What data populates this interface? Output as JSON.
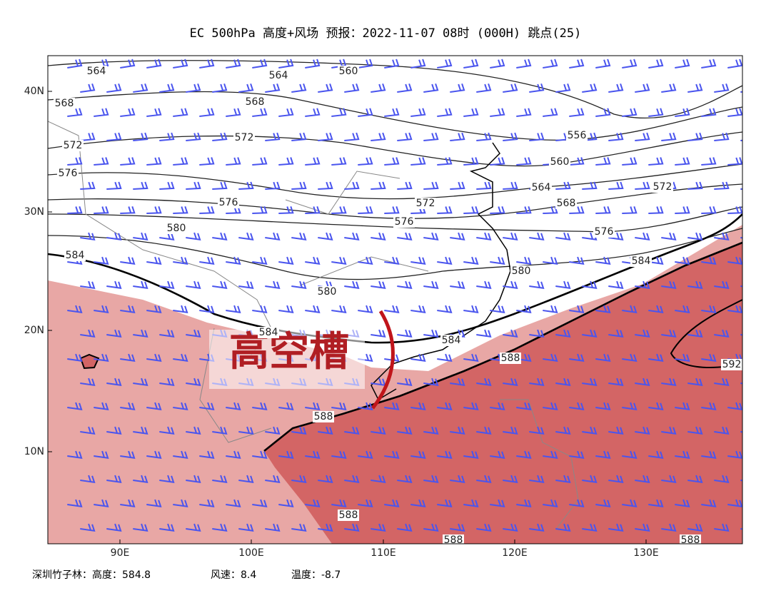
{
  "title": "EC 500hPa 高度+风场  预报：2022-11-07 08时 (000H) 跳点(25)",
  "x_axis_labels": [
    "90E",
    "100E",
    "110E",
    "120E",
    "130E"
  ],
  "y_axis_labels": [
    "40N",
    "30N",
    "20N",
    "10N"
  ],
  "contour_labels": [
    "564",
    "564",
    "560",
    "568",
    "568",
    "572",
    "572",
    "576",
    "576",
    "580",
    "584",
    "572",
    "576",
    "580",
    "584",
    "584",
    "588",
    "588",
    "588",
    "588",
    "588",
    "592",
    "556",
    "560",
    "564",
    "568",
    "572",
    "576",
    "580",
    "584"
  ],
  "annotation": "高空槽",
  "footer": [
    "深圳竹子林：高度：584.8",
    "风速：8.4",
    "温度：-8.7"
  ]
}
